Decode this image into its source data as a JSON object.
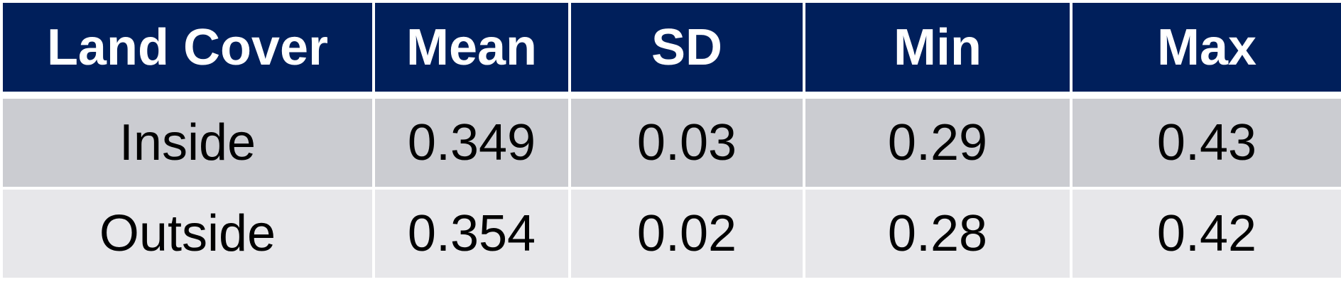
{
  "table": {
    "headers": [
      "Land Cover",
      "Mean",
      "SD",
      "Min",
      "Max"
    ],
    "rows": [
      [
        "Inside",
        "0.349",
        "0.03",
        "0.29",
        "0.43"
      ],
      [
        "Outside",
        "0.354",
        "0.02",
        "0.28",
        "0.42"
      ]
    ]
  },
  "colors": {
    "header_bg": "#001f5b",
    "header_text": "#ffffff",
    "row_1_bg": "#cbccd1",
    "row_2_bg": "#e7e7ea"
  }
}
